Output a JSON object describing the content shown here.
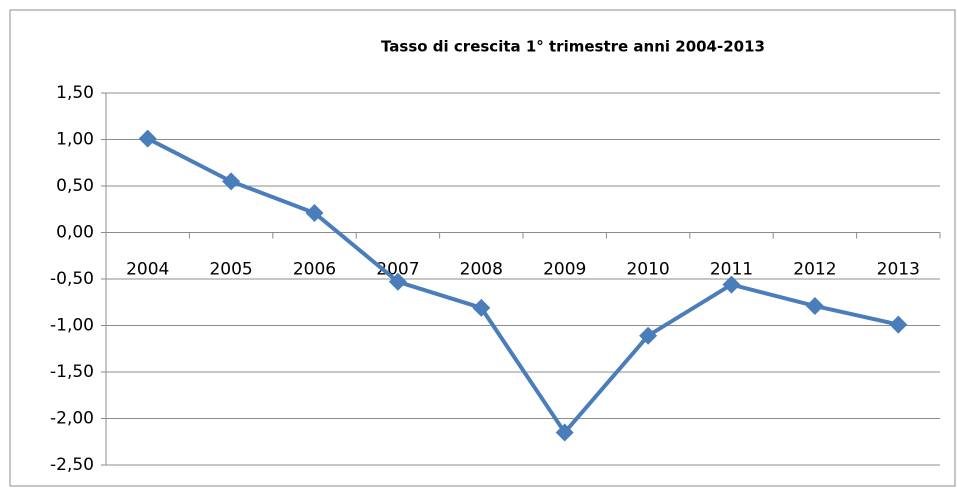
{
  "chart_data": {
    "type": "line",
    "title": "Tasso di crescita 1° trimestre anni 2004-2013",
    "categories": [
      "2004",
      "2005",
      "2006",
      "2007",
      "2008",
      "2009",
      "2010",
      "2011",
      "2012",
      "2013"
    ],
    "values": [
      1.01,
      0.55,
      0.21,
      -0.53,
      -0.81,
      -2.15,
      -1.11,
      -0.56,
      -0.79,
      -0.99
    ],
    "color": "#4a7ebb",
    "ylim": [
      -2.5,
      1.5
    ],
    "yticks": [
      {
        "value": 1.5,
        "label": "1,50"
      },
      {
        "value": 1.0,
        "label": "1,00"
      },
      {
        "value": 0.5,
        "label": "0,50"
      },
      {
        "value": 0.0,
        "label": "0,00"
      },
      {
        "value": -0.5,
        "label": "-0,50"
      },
      {
        "value": -1.0,
        "label": "-1,00"
      },
      {
        "value": -1.5,
        "label": "-1,50"
      },
      {
        "value": -2.0,
        "label": "-2,00"
      },
      {
        "value": -2.5,
        "label": "-2,50"
      }
    ],
    "grid": true
  }
}
